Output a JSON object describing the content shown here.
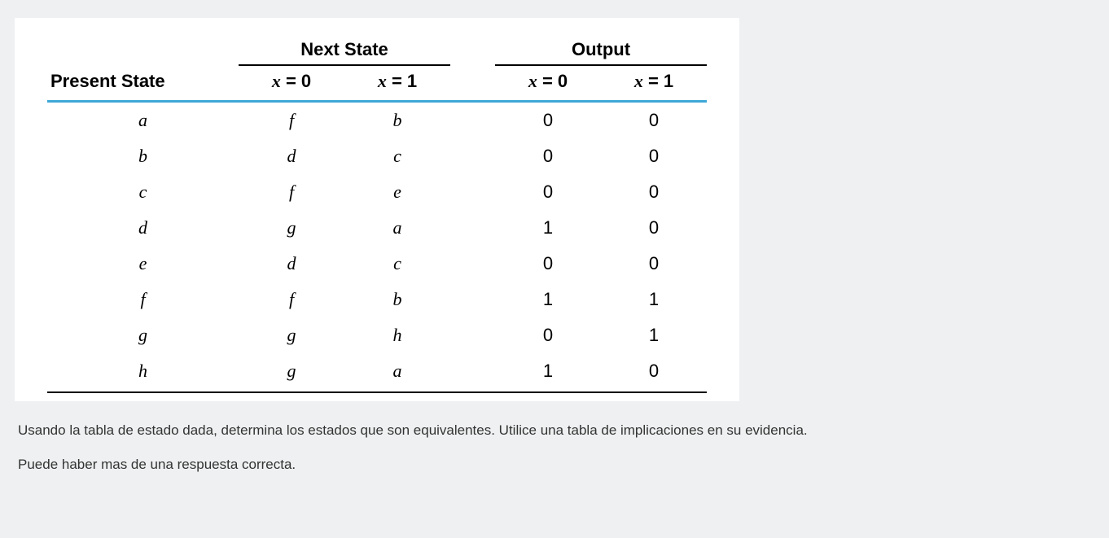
{
  "table": {
    "background_color": "#ffffff",
    "header_border_color": "#000000",
    "accent_border_color": "#3fa8d8",
    "headers": {
      "present_state": "Present State",
      "next_state": "Next State",
      "output": "Output",
      "x0": "x = 0",
      "x1": "x = 1"
    },
    "columns": [
      "present",
      "next_x0",
      "next_x1",
      "out_x0",
      "out_x1"
    ],
    "rows": [
      {
        "present": "a",
        "next_x0": "f",
        "next_x1": "b",
        "out_x0": "0",
        "out_x1": "0"
      },
      {
        "present": "b",
        "next_x0": "d",
        "next_x1": "c",
        "out_x0": "0",
        "out_x1": "0"
      },
      {
        "present": "c",
        "next_x0": "f",
        "next_x1": "e",
        "out_x0": "0",
        "out_x1": "0"
      },
      {
        "present": "d",
        "next_x0": "g",
        "next_x1": "a",
        "out_x0": "1",
        "out_x1": "0"
      },
      {
        "present": "e",
        "next_x0": "d",
        "next_x1": "c",
        "out_x0": "0",
        "out_x1": "0"
      },
      {
        "present": "f",
        "next_x0": "f",
        "next_x1": "b",
        "out_x0": "1",
        "out_x1": "1"
      },
      {
        "present": "g",
        "next_x0": "g",
        "next_x1": "h",
        "out_x0": "0",
        "out_x1": "1"
      },
      {
        "present": "h",
        "next_x0": "g",
        "next_x1": "a",
        "out_x0": "1",
        "out_x1": "0"
      }
    ]
  },
  "questions": {
    "line1": "Usando la tabla de estado dada, determina los estados que son equivalentes. Utilice una tabla de implicaciones en su evidencia.",
    "line2": "Puede haber mas de una respuesta correcta."
  },
  "page": {
    "background_color": "#eef0f1",
    "body_font": "Segoe UI",
    "data_font": "Georgia",
    "header_fontsize": 22,
    "data_fontsize": 22,
    "question_fontsize": 17
  }
}
